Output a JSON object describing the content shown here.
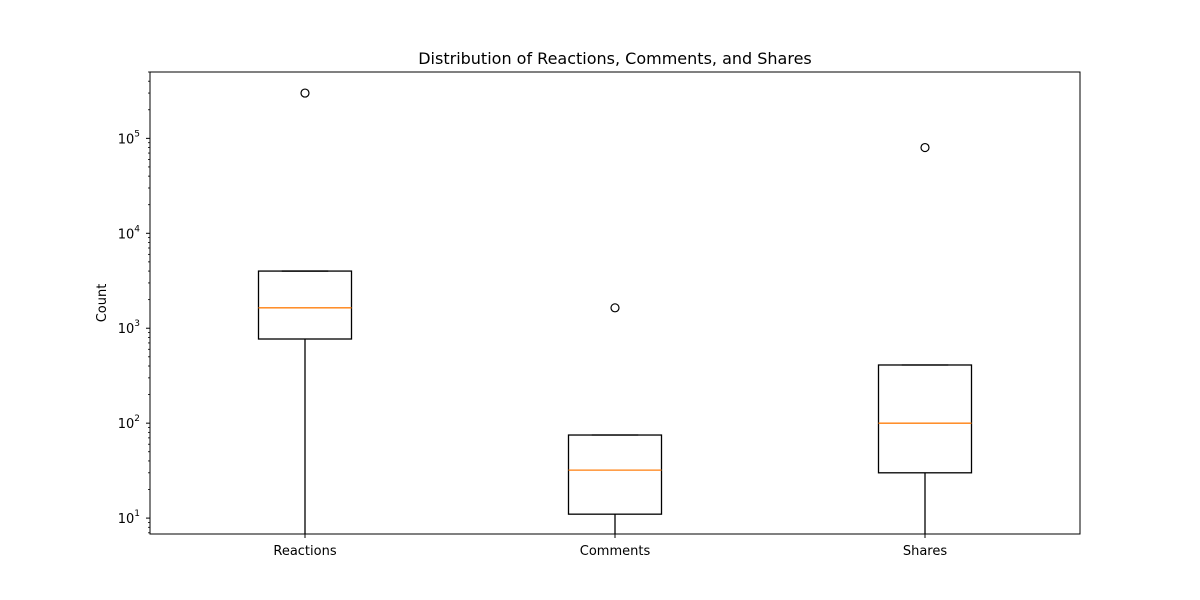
{
  "chart_data": {
    "type": "box",
    "title": "Distribution of Reactions, Comments, and Shares",
    "xlabel": "",
    "ylabel": "Count",
    "yscale": "log",
    "ylim": [
      6.8,
      500000
    ],
    "grid": false,
    "categories": [
      "Reactions",
      "Comments",
      "Shares"
    ],
    "boxes": [
      {
        "category": "Reactions",
        "whislo": 5,
        "q1": 770,
        "median": 1640,
        "q3": 4000,
        "whishi": 4000,
        "fliers": [
          300000
        ]
      },
      {
        "category": "Comments",
        "whislo": 5,
        "q1": 11,
        "median": 32,
        "q3": 75,
        "whishi": 75,
        "fliers": [
          1640
        ]
      },
      {
        "category": "Shares",
        "whislo": 5,
        "q1": 30,
        "median": 100,
        "q3": 410,
        "whishi": 410,
        "fliers": [
          80000
        ]
      }
    ],
    "y_major_ticks": [
      10,
      100,
      1000,
      10000,
      100000
    ],
    "y_major_tick_labels": [
      {
        "base": "10",
        "exp": "1"
      },
      {
        "base": "10",
        "exp": "2"
      },
      {
        "base": "10",
        "exp": "3"
      },
      {
        "base": "10",
        "exp": "4"
      },
      {
        "base": "10",
        "exp": "5"
      }
    ],
    "colors": {
      "box": "#000000",
      "median": "#ff7f0e",
      "flier": "#000000"
    }
  }
}
